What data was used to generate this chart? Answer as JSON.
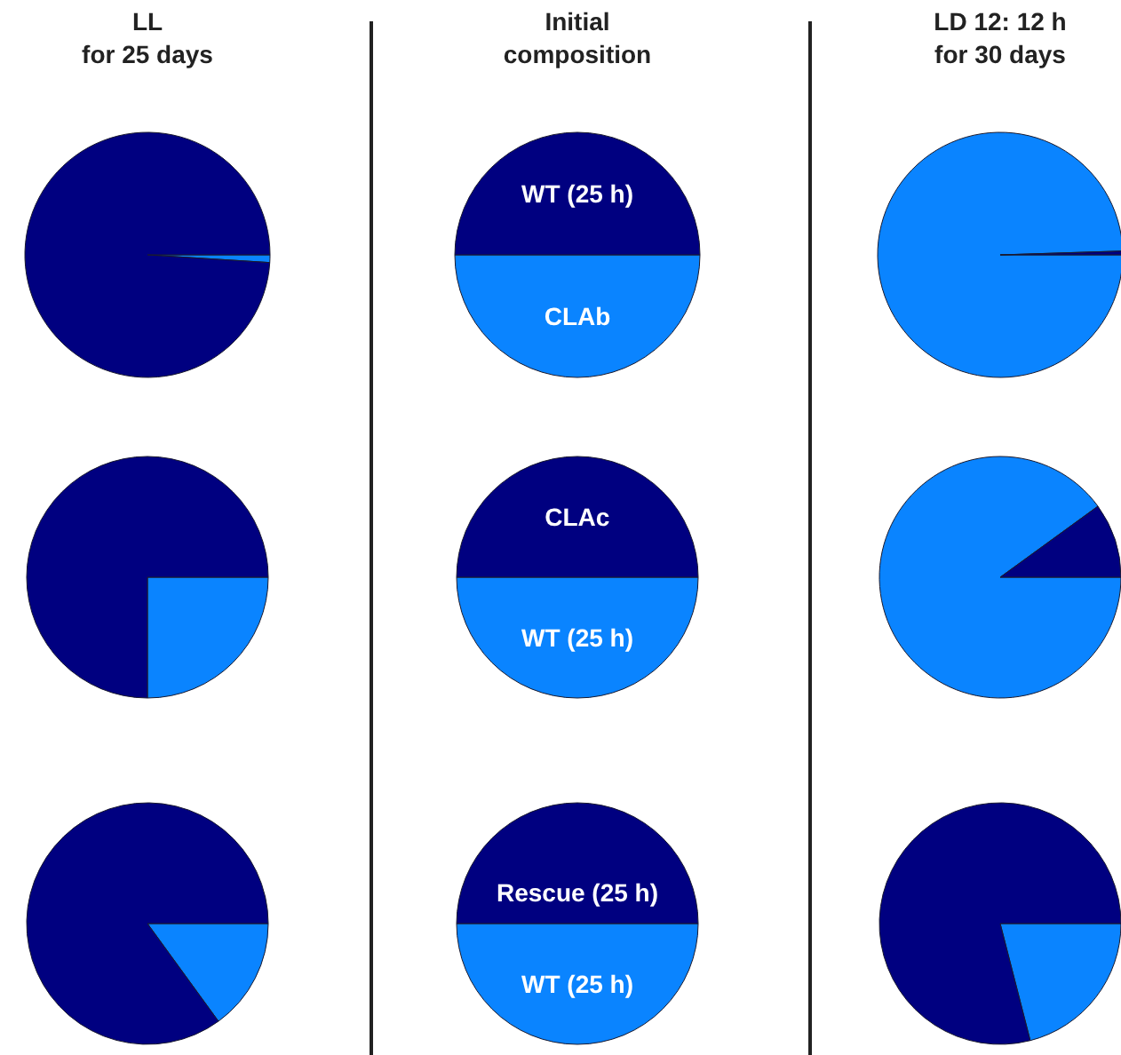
{
  "chart_data": [
    {
      "type": "pie",
      "title": "LL\nfor 25 days",
      "categories": [
        null,
        null
      ],
      "values": [
        1,
        99
      ],
      "colors": [
        "#0a84ff",
        "#000080"
      ]
    },
    {
      "type": "pie",
      "title": "Initial\ncomposition",
      "categories": [
        "CLAb",
        "WT (25 h)"
      ],
      "values": [
        50,
        50
      ],
      "colors": [
        "#0a84ff",
        "#000080"
      ]
    },
    {
      "type": "pie",
      "title": "LD 12: 12 h\nfor 30 days",
      "categories": [
        null,
        null
      ],
      "values": [
        99.5,
        0.5
      ],
      "colors": [
        "#0a84ff",
        "#000080"
      ]
    },
    {
      "type": "pie",
      "categories": [
        null,
        null
      ],
      "values": [
        25,
        75
      ],
      "colors": [
        "#0a84ff",
        "#000080"
      ]
    },
    {
      "type": "pie",
      "categories": [
        "WT (25 h)",
        "CLAc"
      ],
      "values": [
        50,
        50
      ],
      "colors": [
        "#0a84ff",
        "#000080"
      ]
    },
    {
      "type": "pie",
      "categories": [
        null,
        null
      ],
      "values": [
        90,
        10
      ],
      "colors": [
        "#0a84ff",
        "#000080"
      ]
    },
    {
      "type": "pie",
      "categories": [
        null,
        null
      ],
      "values": [
        15,
        85
      ],
      "colors": [
        "#0a84ff",
        "#000080"
      ]
    },
    {
      "type": "pie",
      "categories": [
        "WT (25 h)",
        "Rescue (25 h)"
      ],
      "values": [
        50,
        50
      ],
      "colors": [
        "#0a84ff",
        "#000080"
      ]
    },
    {
      "type": "pie",
      "categories": [
        null,
        null
      ],
      "values": [
        21,
        79
      ],
      "colors": [
        "#0a84ff",
        "#000080"
      ]
    }
  ]
}
